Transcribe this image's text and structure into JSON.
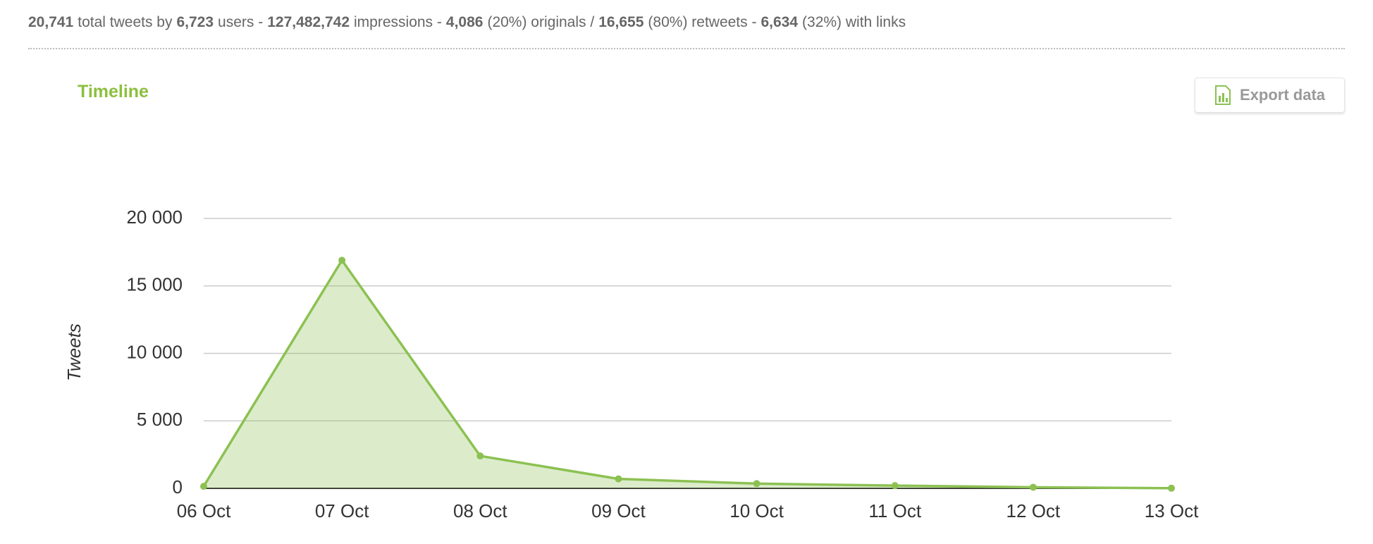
{
  "header": {
    "stats": [
      {
        "number": "20,741",
        "text": "total tweets by"
      },
      {
        "number": "6,723",
        "text": "users -"
      },
      {
        "number": "127,482,742",
        "text": "impressions -"
      },
      {
        "number": "4,086",
        "text": "(20%) originals /"
      },
      {
        "number": "16,655",
        "text": "(80%) retweets -"
      },
      {
        "number": "6,634",
        "text": "(32%) with links"
      }
    ]
  },
  "chart_data": {
    "type": "area",
    "title": "Timeline",
    "export_button": "Export data",
    "y_label": "Tweets",
    "categories": [
      "06 Oct",
      "07 Oct",
      "08 Oct",
      "09 Oct",
      "10 Oct",
      "11 Oct",
      "12 Oct",
      "13 Oct"
    ],
    "values": [
      150,
      16900,
      2400,
      700,
      350,
      200,
      80,
      10
    ],
    "color": "#8cc152",
    "ylim": [
      0,
      20000
    ],
    "yticks": [
      0,
      {
        "value": 5000,
        "label": "5 000"
      },
      {
        "value": 10000,
        "label": "10 000"
      },
      {
        "value": 15000,
        "label": "15 000"
      },
      {
        "value": 20000,
        "label": "20 000"
      }
    ],
    "grid": true
  }
}
